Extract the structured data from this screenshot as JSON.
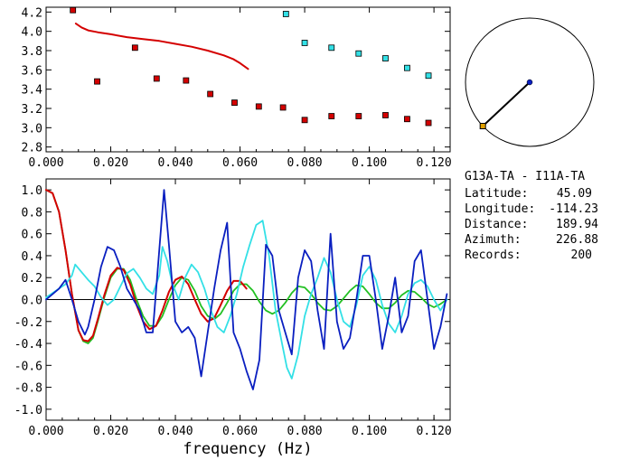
{
  "station_pair": "G13A-TA - I11A-TA",
  "info": [
    {
      "label": "Latitude:",
      "value": "45.09"
    },
    {
      "label": "Longitude:",
      "value": "-114.23"
    },
    {
      "label": "Distance:",
      "value": "189.94"
    },
    {
      "label": "Azimuth:",
      "value": "226.88"
    },
    {
      "label": "Records:",
      "value": "200"
    }
  ],
  "colors": {
    "red": "#d40000",
    "cyan": "#33e0e6",
    "blue": "#0a1fc0",
    "green": "#22c022",
    "black": "#000000",
    "orange_marker": "#e0a000",
    "navy_marker": "#0a1fc0"
  },
  "compass": {
    "azimuth_deg": 226.88
  },
  "chart_data": [
    {
      "type": "scatter",
      "xlabel": "",
      "ylabel": "",
      "xlim": [
        0.0,
        0.125
      ],
      "ylim": [
        2.75,
        4.25
      ],
      "x_ticks": [
        "0.000",
        "0.020",
        "0.040",
        "0.060",
        "0.080",
        "0.100",
        "0.120"
      ],
      "x_tick_values": [
        0.0,
        0.02,
        0.04,
        0.06,
        0.08,
        0.1,
        0.12
      ],
      "y_ticks": [
        "2.8",
        "3.0",
        "3.2",
        "3.4",
        "3.6",
        "3.8",
        "4.0",
        "4.2"
      ],
      "y_tick_values": [
        2.8,
        3.0,
        3.2,
        3.4,
        3.6,
        3.8,
        4.0,
        4.2
      ],
      "series": [
        {
          "color": "red",
          "mode": "markers",
          "x": [
            0.0083,
            0.0158,
            0.0275,
            0.0342,
            0.0433,
            0.0508,
            0.0583,
            0.0658,
            0.0733,
            0.08,
            0.0883,
            0.0967,
            0.105,
            0.1117,
            0.1183
          ],
          "y": [
            4.22,
            3.48,
            3.83,
            3.51,
            3.49,
            3.35,
            3.26,
            3.22,
            3.21,
            3.08,
            3.12,
            3.12,
            3.13,
            3.09,
            3.05
          ]
        },
        {
          "color": "cyan",
          "mode": "markers",
          "x": [
            0.0742,
            0.08,
            0.0883,
            0.0967,
            0.105,
            0.1117,
            0.1183
          ],
          "y": [
            4.18,
            3.88,
            3.83,
            3.77,
            3.72,
            3.62,
            3.54
          ]
        },
        {
          "color": "red",
          "mode": "line",
          "x": [
            0.0092,
            0.011,
            0.013,
            0.016,
            0.02,
            0.025,
            0.03,
            0.035,
            0.04,
            0.045,
            0.05,
            0.055,
            0.058,
            0.06,
            0.0625
          ],
          "y": [
            4.08,
            4.04,
            4.01,
            3.99,
            3.97,
            3.94,
            3.92,
            3.9,
            3.87,
            3.84,
            3.8,
            3.75,
            3.71,
            3.67,
            3.61
          ]
        }
      ]
    },
    {
      "type": "line",
      "xlabel": "frequency (Hz)",
      "ylabel": "",
      "xlim": [
        0.0,
        0.125
      ],
      "ylim": [
        -1.1,
        1.1
      ],
      "zero_line": true,
      "x_ticks": [
        "0.000",
        "0.020",
        "0.040",
        "0.060",
        "0.080",
        "0.100",
        "0.120"
      ],
      "x_tick_values": [
        0.0,
        0.02,
        0.04,
        0.06,
        0.08,
        0.1,
        0.12
      ],
      "y_ticks": [
        "-1.0",
        "-0.8",
        "-0.6",
        "-0.4",
        "-0.2",
        "0.0",
        "0.2",
        "0.4",
        "0.6",
        "0.8",
        "1.0"
      ],
      "y_tick_values": [
        -1.0,
        -0.8,
        -0.6,
        -0.4,
        -0.2,
        0.0,
        0.2,
        0.4,
        0.6,
        0.8,
        1.0
      ],
      "series": [
        {
          "color": "green",
          "x": [
            0.0,
            0.002,
            0.004,
            0.006,
            0.008,
            0.01,
            0.0115,
            0.013,
            0.0145,
            0.016,
            0.018,
            0.02,
            0.022,
            0.024,
            0.026,
            0.028,
            0.03,
            0.032,
            0.034,
            0.036,
            0.038,
            0.04,
            0.042,
            0.044,
            0.046,
            0.048,
            0.05,
            0.052,
            0.054,
            0.056,
            0.058,
            0.06,
            0.062,
            0.064,
            0.066,
            0.068,
            0.07,
            0.072,
            0.074,
            0.076,
            0.078,
            0.08,
            0.082,
            0.084,
            0.086,
            0.088,
            0.09,
            0.092,
            0.094,
            0.096,
            0.098,
            0.1,
            0.102,
            0.104,
            0.106,
            0.108,
            0.11,
            0.112,
            0.114,
            0.116,
            0.118,
            0.12,
            0.122,
            0.124
          ],
          "y": [
            1.0,
            0.97,
            0.8,
            0.45,
            0.05,
            -0.28,
            -0.38,
            -0.4,
            -0.35,
            -0.2,
            0.02,
            0.2,
            0.28,
            0.28,
            0.18,
            0.0,
            -0.15,
            -0.24,
            -0.24,
            -0.15,
            0.0,
            0.13,
            0.2,
            0.18,
            0.08,
            -0.06,
            -0.15,
            -0.18,
            -0.13,
            -0.03,
            0.08,
            0.14,
            0.14,
            0.08,
            -0.02,
            -0.1,
            -0.13,
            -0.1,
            -0.03,
            0.06,
            0.12,
            0.11,
            0.05,
            -0.03,
            -0.09,
            -0.1,
            -0.06,
            0.01,
            0.08,
            0.13,
            0.12,
            0.05,
            -0.03,
            -0.08,
            -0.08,
            -0.03,
            0.04,
            0.08,
            0.07,
            0.02,
            -0.04,
            -0.07,
            -0.04,
            0.0
          ]
        },
        {
          "color": "red",
          "x": [
            0.0,
            0.002,
            0.004,
            0.006,
            0.008,
            0.01,
            0.0115,
            0.013,
            0.0145,
            0.016,
            0.018,
            0.02,
            0.022,
            0.024,
            0.026,
            0.028,
            0.03,
            0.032,
            0.034,
            0.036,
            0.038,
            0.04,
            0.042,
            0.044,
            0.046,
            0.048,
            0.05,
            0.052,
            0.054,
            0.056,
            0.058,
            0.06,
            0.062
          ],
          "y": [
            1.0,
            0.97,
            0.8,
            0.45,
            0.05,
            -0.28,
            -0.37,
            -0.38,
            -0.33,
            -0.18,
            0.04,
            0.22,
            0.29,
            0.27,
            0.14,
            -0.05,
            -0.2,
            -0.27,
            -0.24,
            -0.1,
            0.07,
            0.18,
            0.21,
            0.14,
            0.0,
            -0.13,
            -0.2,
            -0.17,
            -0.05,
            0.08,
            0.17,
            0.17,
            0.1
          ]
        },
        {
          "color": "cyan",
          "x": [
            0.0,
            0.002,
            0.004,
            0.006,
            0.008,
            0.009,
            0.011,
            0.013,
            0.015,
            0.017,
            0.019,
            0.021,
            0.023,
            0.025,
            0.027,
            0.029,
            0.031,
            0.033,
            0.035,
            0.036,
            0.0375,
            0.039,
            0.041,
            0.043,
            0.045,
            0.047,
            0.049,
            0.051,
            0.053,
            0.055,
            0.057,
            0.059,
            0.061,
            0.063,
            0.065,
            0.067,
            0.069,
            0.071,
            0.073,
            0.0745,
            0.076,
            0.078,
            0.08,
            0.082,
            0.084,
            0.086,
            0.088,
            0.09,
            0.092,
            0.094,
            0.096,
            0.098,
            0.1,
            0.102,
            0.104,
            0.106,
            0.108,
            0.11,
            0.112,
            0.114,
            0.116,
            0.118,
            0.12,
            0.122,
            0.124
          ],
          "y": [
            0.02,
            0.06,
            0.1,
            0.14,
            0.22,
            0.32,
            0.25,
            0.18,
            0.12,
            0.02,
            -0.05,
            0.0,
            0.12,
            0.24,
            0.28,
            0.2,
            0.1,
            0.05,
            0.22,
            0.48,
            0.35,
            0.15,
            0.0,
            0.2,
            0.32,
            0.25,
            0.1,
            -0.1,
            -0.25,
            -0.3,
            -0.15,
            0.05,
            0.3,
            0.5,
            0.68,
            0.72,
            0.4,
            -0.1,
            -0.4,
            -0.62,
            -0.72,
            -0.5,
            -0.15,
            0.05,
            0.2,
            0.38,
            0.25,
            0.0,
            -0.2,
            -0.25,
            -0.05,
            0.22,
            0.3,
            0.18,
            -0.05,
            -0.22,
            -0.3,
            -0.15,
            0.05,
            0.15,
            0.18,
            0.12,
            0.0,
            -0.1,
            0.0
          ]
        },
        {
          "color": "blue",
          "x": [
            0.0,
            0.002,
            0.004,
            0.006,
            0.008,
            0.01,
            0.012,
            0.013,
            0.015,
            0.017,
            0.019,
            0.021,
            0.023,
            0.025,
            0.027,
            0.029,
            0.031,
            0.033,
            0.035,
            0.0365,
            0.038,
            0.04,
            0.042,
            0.044,
            0.046,
            0.048,
            0.05,
            0.052,
            0.054,
            0.056,
            0.058,
            0.06,
            0.062,
            0.064,
            0.066,
            0.068,
            0.07,
            0.072,
            0.074,
            0.076,
            0.078,
            0.08,
            0.082,
            0.084,
            0.086,
            0.088,
            0.09,
            0.092,
            0.094,
            0.096,
            0.098,
            0.1,
            0.102,
            0.104,
            0.106,
            0.108,
            0.11,
            0.112,
            0.114,
            0.116,
            0.118,
            0.12,
            0.122,
            0.124
          ],
          "y": [
            0.0,
            0.05,
            0.1,
            0.18,
            0.0,
            -0.2,
            -0.32,
            -0.25,
            0.0,
            0.3,
            0.48,
            0.45,
            0.3,
            0.1,
            0.0,
            -0.1,
            -0.3,
            -0.3,
            0.45,
            1.0,
            0.5,
            -0.2,
            -0.3,
            -0.25,
            -0.35,
            -0.7,
            -0.3,
            0.1,
            0.45,
            0.7,
            -0.3,
            -0.45,
            -0.65,
            -0.82,
            -0.55,
            0.5,
            0.4,
            -0.1,
            -0.3,
            -0.5,
            0.2,
            0.45,
            0.35,
            -0.1,
            -0.45,
            0.6,
            -0.2,
            -0.45,
            -0.35,
            0.0,
            0.4,
            0.4,
            0.0,
            -0.45,
            -0.15,
            0.2,
            -0.3,
            -0.15,
            0.35,
            0.45,
            0.0,
            -0.45,
            -0.25,
            0.05
          ]
        }
      ]
    }
  ]
}
